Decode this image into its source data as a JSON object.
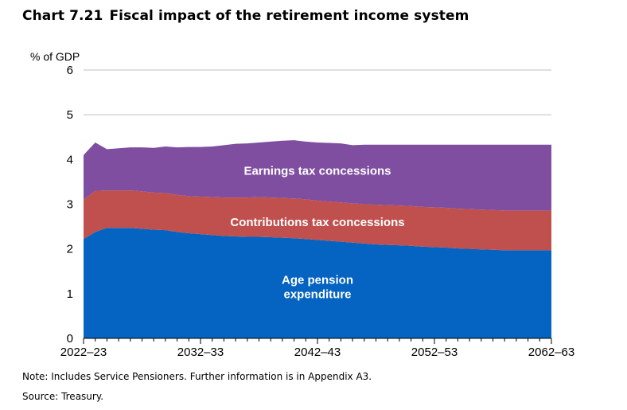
{
  "header": {
    "chart_number": "Chart 7.21",
    "title": "Fiscal impact of the retirement income system"
  },
  "footer": {
    "note": "Note: Includes Service Pensioners. Further information is in Appendix A3.",
    "source": "Source: Treasury."
  },
  "colors": {
    "age_pension": "#0563C1",
    "contributions": "#C0504D",
    "earnings": "#7F4EA0",
    "gridline": "#bfbfbf",
    "axis": "#000000"
  },
  "chart_data": {
    "type": "area",
    "stacked": true,
    "title": "Fiscal impact of the retirement income system",
    "ylabel": "% of GDP",
    "xlabel": "",
    "ylim": [
      0,
      6
    ],
    "yticks": [
      "0",
      "1",
      "2",
      "3",
      "4",
      "5",
      "6"
    ],
    "xlim": [
      2022,
      2062
    ],
    "xticks": [
      {
        "x": 2022,
        "label": "2022–23"
      },
      {
        "x": 2032,
        "label": "2032–33"
      },
      {
        "x": 2042,
        "label": "2042–43"
      },
      {
        "x": 2052,
        "label": "2052–53"
      },
      {
        "x": 2062,
        "label": "2062–63"
      }
    ],
    "grid": true,
    "x": [
      2022,
      2023,
      2024,
      2025,
      2026,
      2027,
      2028,
      2029,
      2030,
      2031,
      2032,
      2033,
      2034,
      2035,
      2036,
      2037,
      2038,
      2039,
      2040,
      2041,
      2042,
      2043,
      2044,
      2045,
      2046,
      2047,
      2048,
      2049,
      2050,
      2051,
      2052,
      2053,
      2054,
      2055,
      2056,
      2057,
      2058,
      2059,
      2060,
      2061,
      2062
    ],
    "series": [
      {
        "name": "Age pension expenditure",
        "label_lines": [
          "Age pension",
          "expenditure"
        ],
        "label_pos": {
          "x": 2042,
          "y": 1.15
        },
        "values": [
          2.22,
          2.38,
          2.47,
          2.47,
          2.47,
          2.45,
          2.43,
          2.42,
          2.38,
          2.35,
          2.33,
          2.31,
          2.29,
          2.28,
          2.27,
          2.27,
          2.26,
          2.25,
          2.24,
          2.22,
          2.2,
          2.18,
          2.16,
          2.14,
          2.12,
          2.1,
          2.09,
          2.08,
          2.07,
          2.05,
          2.04,
          2.03,
          2.01,
          2.0,
          1.99,
          1.98,
          1.97,
          1.97,
          1.97,
          1.97,
          1.97
        ]
      },
      {
        "name": "Contributions tax concessions",
        "label_lines": [
          "Contributions tax concessions"
        ],
        "label_pos": {
          "x": 2042,
          "y": 2.6
        },
        "values": [
          0.88,
          0.92,
          0.84,
          0.84,
          0.84,
          0.84,
          0.83,
          0.83,
          0.83,
          0.83,
          0.84,
          0.85,
          0.86,
          0.87,
          0.88,
          0.89,
          0.89,
          0.89,
          0.89,
          0.89,
          0.88,
          0.88,
          0.88,
          0.88,
          0.88,
          0.89,
          0.89,
          0.89,
          0.89,
          0.89,
          0.89,
          0.89,
          0.89,
          0.89,
          0.89,
          0.89,
          0.89,
          0.89,
          0.89,
          0.89,
          0.89
        ]
      },
      {
        "name": "Earnings tax concessions",
        "label_lines": [
          "Earnings tax concessions"
        ],
        "label_pos": {
          "x": 2042,
          "y": 3.75
        },
        "values": [
          1.0,
          1.08,
          0.92,
          0.94,
          0.96,
          0.98,
          1.0,
          1.04,
          1.06,
          1.1,
          1.11,
          1.13,
          1.17,
          1.2,
          1.21,
          1.22,
          1.25,
          1.28,
          1.3,
          1.29,
          1.3,
          1.31,
          1.32,
          1.3,
          1.33,
          1.34,
          1.35,
          1.36,
          1.37,
          1.39,
          1.4,
          1.41,
          1.43,
          1.44,
          1.45,
          1.46,
          1.47,
          1.47,
          1.47,
          1.47,
          1.47
        ]
      }
    ]
  }
}
